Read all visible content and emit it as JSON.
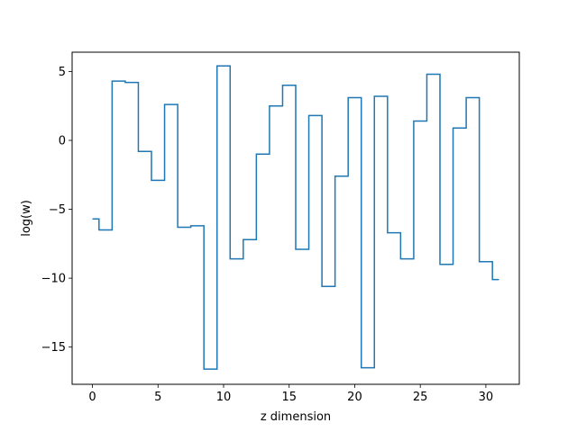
{
  "chart_data": {
    "type": "line",
    "drawstyle": "steps-mid",
    "title": "",
    "xlabel": "z dimension",
    "ylabel": "log(w)",
    "xlim": [
      -1.55,
      32.55
    ],
    "ylim": [
      -17.7,
      6.4
    ],
    "xticks": [
      0,
      5,
      10,
      15,
      20,
      25,
      30
    ],
    "yticks": [
      5,
      0,
      -5,
      -10,
      -15
    ],
    "ytick_labels": [
      "5",
      "0",
      "−5",
      "−10",
      "−15"
    ],
    "grid": false,
    "legend": "none",
    "series": [
      {
        "color": "#1f77b4",
        "x": [
          0,
          1,
          2,
          3,
          4,
          5,
          6,
          7,
          8,
          9,
          10,
          11,
          12,
          13,
          14,
          15,
          16,
          17,
          18,
          19,
          20,
          21,
          22,
          23,
          24,
          25,
          26,
          27,
          28,
          29,
          30,
          31
        ],
        "y": [
          -5.7,
          -6.5,
          4.3,
          4.2,
          -0.8,
          -2.9,
          2.6,
          -6.3,
          -6.2,
          -16.6,
          5.4,
          -8.6,
          -7.2,
          -1.0,
          2.5,
          4.0,
          -7.9,
          1.8,
          -10.6,
          -2.6,
          3.1,
          -16.5,
          3.2,
          -6.7,
          -8.6,
          1.4,
          4.8,
          -9.0,
          0.9,
          3.1,
          -8.8,
          -10.1
        ]
      }
    ]
  }
}
